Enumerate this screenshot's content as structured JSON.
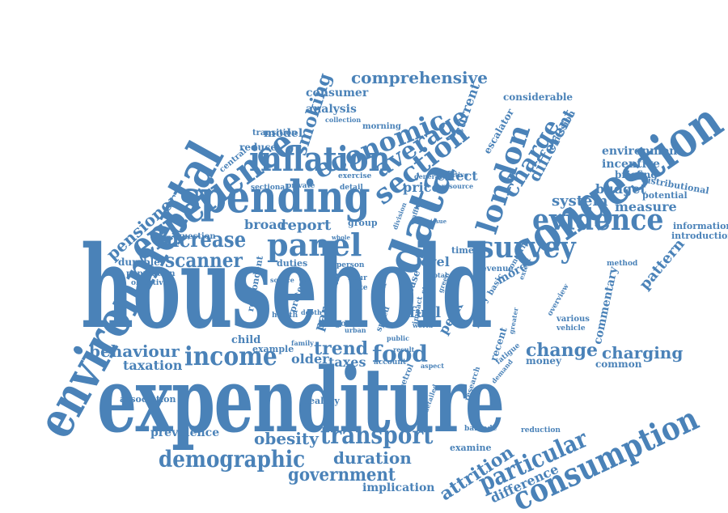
{
  "style": {
    "word_color": "#4a82b8",
    "background": "#ffffff"
  },
  "words": [
    "household",
    "expenditure",
    "environmental",
    "congestion",
    "spending",
    "data",
    "experience",
    "inflation",
    "consumption",
    "panel",
    "survey",
    "london",
    "evidence",
    "income",
    "section",
    "economic",
    "transport",
    "increase",
    "demographic",
    "particular",
    "scanner",
    "average",
    "charge",
    "food",
    "comprehensive",
    "smoking",
    "government",
    "change",
    "charging",
    "trend",
    "behaviour",
    "attrition",
    "duration",
    "obesity",
    "pensioner",
    "report",
    "different",
    "taxes",
    "taxation",
    "older",
    "difference",
    "level",
    "fuel",
    "parental",
    "system",
    "measure",
    "budget",
    "environment",
    "incentive",
    "broad",
    "durable",
    "consumer",
    "model",
    "reduce",
    "analysis",
    "current",
    "effect",
    "price",
    "pattern",
    "commentary",
    "more",
    "money",
    "common",
    "prevalence",
    "association",
    "healthy",
    "implication",
    "examine",
    "considerable",
    "briefing",
    "distributional",
    "potential",
    "information",
    "introduction",
    "escalator",
    "emission",
    "duties",
    "population",
    "objective",
    "question",
    "respondent",
    "child",
    "example",
    "protest",
    "peak",
    "policy",
    "revenue",
    "speed",
    "petrol",
    "recent",
    "research",
    "barcode",
    "reduction",
    "fatigue",
    "morning",
    "transition",
    "central",
    "collection",
    "sectional",
    "private",
    "exercise",
    "detail",
    "group",
    "person",
    "note",
    "case",
    "study",
    "basic",
    "hour",
    "year",
    "good",
    "family",
    "health",
    "time",
    "method",
    "concern",
    "greater",
    "overview",
    "various",
    "vehicle",
    "detailed",
    "account",
    "aspect",
    "demand",
    "positive",
    "resource",
    "general",
    "division",
    "impact",
    "source",
    "depth",
    "extent",
    "world",
    "public",
    "urban",
    "result",
    "total",
    "green",
    "whole",
    "traffic",
    "issue"
  ]
}
